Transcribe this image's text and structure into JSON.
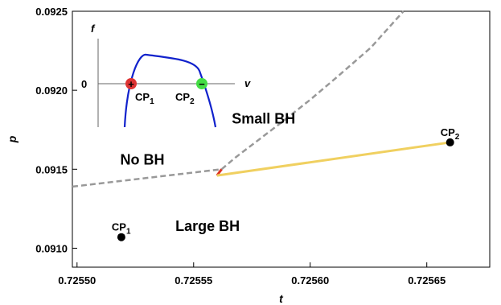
{
  "chart_data": {
    "type": "line",
    "xlabel": "t",
    "ylabel": "p",
    "xlim": [
      0.725498,
      0.725677
    ],
    "ylim": [
      0.09088,
      0.0925
    ],
    "x_ticks": [
      0.7255,
      0.72555,
      0.7256,
      0.72565
    ],
    "x_tick_labels": [
      "0.72550",
      "0.72555",
      "0.72560",
      "0.72565"
    ],
    "y_ticks": [
      0.091,
      0.0915,
      0.092,
      0.0925
    ],
    "y_tick_labels": [
      "0.0910",
      "0.0915",
      "0.0920",
      "0.0925"
    ],
    "series": [
      {
        "role": "dashed-lower",
        "color": "#999999",
        "style": "dashed",
        "x": [
          0.725498,
          0.725562
        ],
        "y": [
          0.09139,
          0.0915
        ]
      },
      {
        "role": "dashed-upper",
        "color": "#999999",
        "style": "dashed",
        "x": [
          0.725562,
          0.725568,
          0.725576,
          0.725588,
          0.7256,
          0.725612,
          0.725626,
          0.72564
        ],
        "y": [
          0.0915,
          0.091575,
          0.091665,
          0.0918,
          0.09194,
          0.09209,
          0.09227,
          0.0925
        ]
      },
      {
        "role": "red-segment",
        "color": "#dd3322",
        "style": "solid",
        "x": [
          0.72556,
          0.725562
        ],
        "y": [
          0.09146,
          0.0915
        ]
      },
      {
        "role": "yellow-line",
        "color": "#f0d060",
        "style": "solid",
        "x": [
          0.72556,
          0.72566
        ],
        "y": [
          0.09146,
          0.09167
        ]
      }
    ],
    "points": [
      {
        "label_base": "CP",
        "label_sub": "1",
        "x": 0.725519,
        "y": 0.09107
      },
      {
        "label_base": "CP",
        "label_sub": "2",
        "x": 0.72566,
        "y": 0.09167
      }
    ],
    "regions": [
      {
        "text": "Small BH",
        "x": 0.72558,
        "y": 0.09179
      },
      {
        "text": "No BH",
        "x": 0.725528,
        "y": 0.09153
      },
      {
        "text": "Large BH",
        "x": 0.725556,
        "y": 0.09111
      }
    ],
    "inset": {
      "ylabel": "f",
      "xlabel": "v",
      "zero_label": "0",
      "curve_color": "#1122cc",
      "points": [
        {
          "label_base": "CP",
          "label_sub": "1",
          "color": "#dd3333",
          "sign": "+"
        },
        {
          "label_base": "CP",
          "label_sub": "2",
          "color": "#44dd44",
          "sign": "−"
        }
      ]
    }
  }
}
